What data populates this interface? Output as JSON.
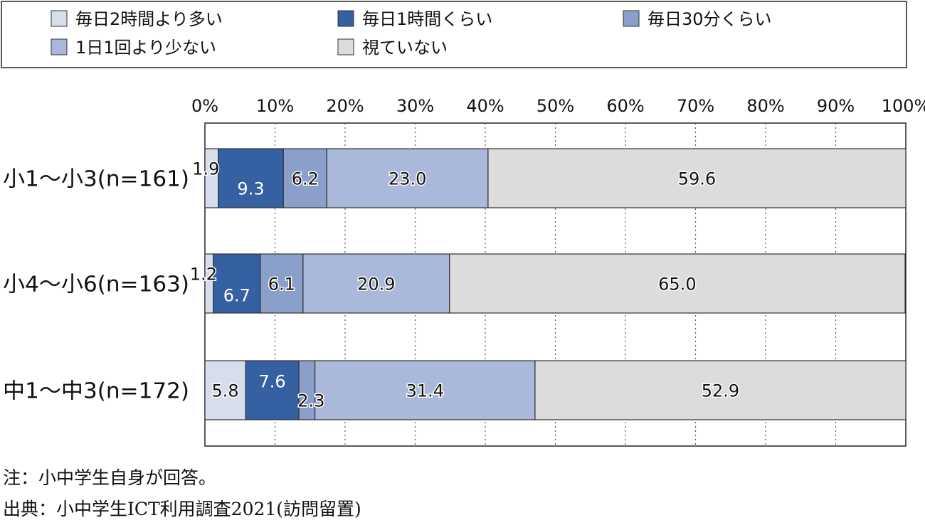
{
  "chart_data": {
    "type": "bar",
    "orientation": "horizontal",
    "stacked": true,
    "percent_axis": true,
    "xlim": [
      0,
      100
    ],
    "x_ticks": [
      "0%",
      "10%",
      "20%",
      "30%",
      "40%",
      "50%",
      "60%",
      "70%",
      "80%",
      "90%",
      "100%"
    ],
    "grid": true,
    "legend_position": "top",
    "categories": [
      "小1～小3(n=161)",
      "小4～小6(n=163)",
      "中1～中3(n=172)"
    ],
    "series": [
      {
        "name": "毎日2時間より多い",
        "values": [
          1.9,
          1.2,
          5.8
        ],
        "labels": [
          "1.9",
          "1.2",
          "5.8"
        ],
        "color": "#d6ddec"
      },
      {
        "name": "毎日1時間くらい",
        "values": [
          9.3,
          6.7,
          7.6
        ],
        "labels": [
          "9.3",
          "6.7",
          "7.6"
        ],
        "color": "#3560a2"
      },
      {
        "name": "毎日30分くらい",
        "values": [
          6.2,
          6.1,
          2.3
        ],
        "labels": [
          "6.2",
          "6.1",
          "2.3"
        ],
        "color": "#8a9fc9"
      },
      {
        "name": "1日1回より少ない",
        "values": [
          23.0,
          20.9,
          31.4
        ],
        "labels": [
          "23.0",
          "20.9",
          "31.4"
        ],
        "color": "#aab8d9"
      },
      {
        "name": "視ていない",
        "values": [
          59.6,
          65.0,
          52.9
        ],
        "labels": [
          "59.6",
          "65.0",
          "52.9"
        ],
        "color": "#dcdcdc"
      }
    ]
  },
  "legend_order": [
    0,
    1,
    2,
    3,
    4
  ],
  "notes": {
    "note": "注：小中学生自身が回答。",
    "source": "出典：小中学生ICT利用調査2021(訪問留置)"
  }
}
